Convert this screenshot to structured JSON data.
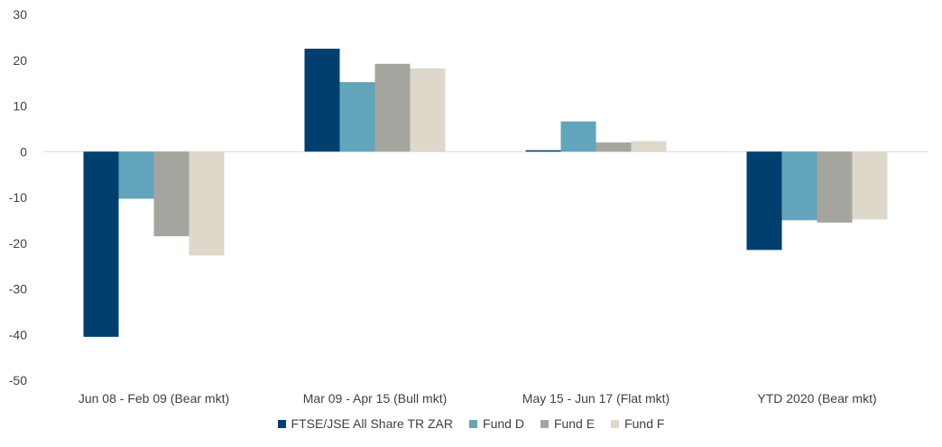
{
  "chart_data": {
    "type": "bar",
    "categories": [
      "Jun 08 - Feb 09 (Bear mkt)",
      "Mar 09 - Apr 15 (Bull mkt)",
      "May 15 - Jun 17 (Flat mkt)",
      "YTD 2020 (Bear mkt)"
    ],
    "series": [
      {
        "name": "FTSE/JSE All Share TR ZAR",
        "color": "#003f6e",
        "values": [
          -40.5,
          22.5,
          0.3,
          -21.5
        ]
      },
      {
        "name": "Fund D",
        "color": "#62a4bb",
        "values": [
          -10.3,
          15.2,
          6.6,
          -15.0
        ]
      },
      {
        "name": "Fund E",
        "color": "#a5a59f",
        "values": [
          -18.5,
          19.2,
          2.0,
          -15.5
        ]
      },
      {
        "name": "Fund F",
        "color": "#ded8cb",
        "values": [
          -22.7,
          18.2,
          2.3,
          -14.8
        ]
      }
    ],
    "ylim": [
      -50,
      30
    ],
    "yticks": [
      "30",
      "20",
      "10",
      "0",
      "-10",
      "-20",
      "-30",
      "-40",
      "-50"
    ],
    "ytick_values": [
      30,
      20,
      10,
      0,
      -10,
      -20,
      -30,
      -40,
      -50
    ],
    "grid": false,
    "legend_position": "bottom",
    "title": "",
    "xlabel": "",
    "ylabel": ""
  }
}
